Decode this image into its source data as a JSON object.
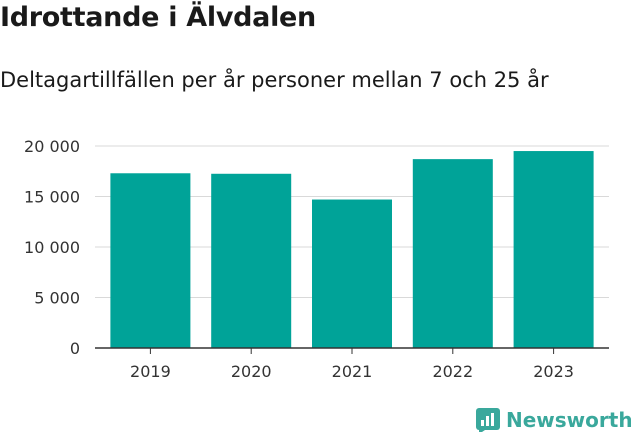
{
  "title": "Idrottande i Älvdalen",
  "subtitle": "Deltagartillfällen per år personer mellan 7 och 25 år",
  "brand": {
    "name": "Newsworthy",
    "icon": "newsworthy-logo-icon",
    "color": "#3aa89c"
  },
  "chart_data": {
    "type": "bar",
    "categories": [
      "2019",
      "2020",
      "2021",
      "2022",
      "2023"
    ],
    "values": [
      17300,
      17250,
      14700,
      18700,
      19500
    ],
    "ylim": [
      0,
      20000
    ],
    "yticks": [
      0,
      5000,
      10000,
      15000,
      20000
    ],
    "ytick_labels": [
      "0",
      "5 000",
      "10 000",
      "15 000",
      "20 000"
    ],
    "grid": true,
    "bar_color": "#00a398",
    "xlabel": "",
    "ylabel": ""
  }
}
